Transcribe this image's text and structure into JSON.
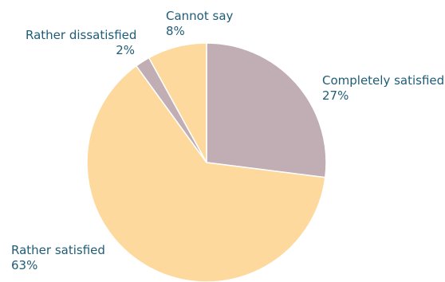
{
  "chart_data": {
    "type": "pie",
    "title": "",
    "slices": [
      {
        "label": "Completely satisfied",
        "value": 27,
        "display": "27%",
        "color": "#c0aeb4"
      },
      {
        "label": "Rather satisfied",
        "value": 63,
        "display": "63%",
        "color": "#fdd99d"
      },
      {
        "label": "Rather dissatisfied",
        "value": 2,
        "display": "2%",
        "color": "#c0aeb4"
      },
      {
        "label": "Cannot say",
        "value": 8,
        "display": "8%",
        "color": "#fdd99d"
      }
    ],
    "start": "12 o'clock",
    "direction": "clockwise",
    "legend": "none (direct labels)",
    "label_color": "#1f5c78"
  }
}
